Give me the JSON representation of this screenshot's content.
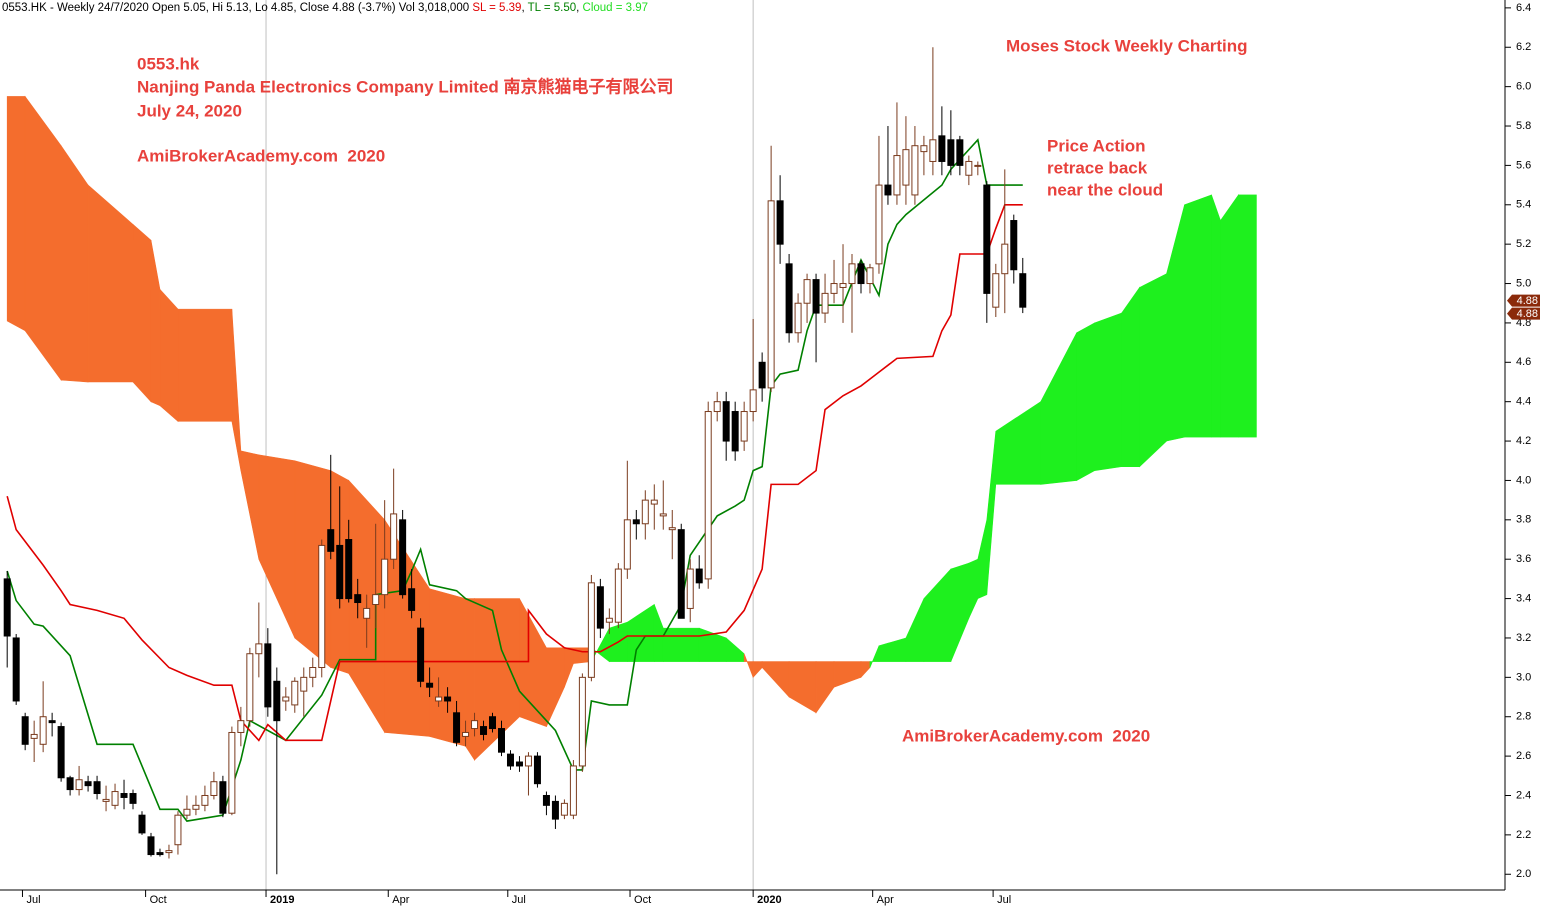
{
  "chart_data": {
    "type": "candlestick",
    "header": [
      {
        "text": "0553.HK - Weekly 24/7/2020 Open 5.05, Hi 5.13, Lo 4.85, Close 4.88 (-3.7%) Vol 3,018,000 ",
        "color": "#000000"
      },
      {
        "text": "SL = 5.39",
        "color": "#e00000"
      },
      {
        "text": ", ",
        "color": "#000000"
      },
      {
        "text": "TL = 5.50",
        "color": "#008000"
      },
      {
        "text": ", ",
        "color": "#000000"
      },
      {
        "text": "Cloud = 3.97",
        "color": "#22dd22"
      }
    ],
    "texts": {
      "ticker": "0553.hk",
      "company": "Nanjing Panda Electronics Company Limited 南京熊猫电子有限公司",
      "date": "July 24, 2020",
      "site": "AmiBrokerAcademy.com  2020",
      "heading": "Moses Stock Weekly Charting",
      "annotation": [
        "Price Action",
        "retrace back",
        "near the cloud"
      ],
      "watermark": "AmiBrokerAcademy.com  2020"
    },
    "text_color": "#e8413c",
    "x": [
      0,
      1,
      2,
      3,
      4,
      5,
      6,
      7,
      8,
      9,
      10,
      11,
      12,
      13,
      14,
      15,
      16,
      17,
      18,
      19,
      20,
      21,
      22,
      23,
      24,
      25,
      26,
      27,
      28,
      29,
      30,
      31,
      32,
      33,
      34,
      35,
      36,
      37,
      38,
      39,
      40,
      41,
      42,
      43,
      44,
      45,
      46,
      47,
      48,
      49,
      50,
      51,
      52,
      53,
      54,
      55,
      56,
      57,
      58,
      59,
      60,
      61,
      62,
      63,
      64,
      65,
      66,
      67,
      68,
      69,
      70,
      71,
      72,
      73,
      74,
      75,
      76,
      77,
      78,
      79,
      80,
      81,
      82,
      83,
      84,
      85,
      86,
      87,
      88,
      89,
      90,
      91,
      92,
      93,
      94,
      95,
      96,
      97,
      98,
      99,
      100,
      101,
      102,
      103,
      104,
      105,
      106,
      107,
      108,
      109,
      110,
      111,
      112,
      113
    ],
    "ohlc": [
      [
        3.5,
        3.54,
        3.05,
        3.21
      ],
      [
        3.2,
        3.22,
        2.86,
        2.88
      ],
      [
        2.8,
        2.82,
        2.63,
        2.66
      ],
      [
        2.69,
        2.78,
        2.57,
        2.71
      ],
      [
        2.66,
        2.98,
        2.62,
        2.8
      ],
      [
        2.78,
        2.82,
        2.7,
        2.77
      ],
      [
        2.75,
        2.77,
        2.47,
        2.49
      ],
      [
        2.49,
        2.5,
        2.4,
        2.43
      ],
      [
        2.43,
        2.55,
        2.4,
        2.48
      ],
      [
        2.47,
        2.5,
        2.42,
        2.45
      ],
      [
        2.47,
        2.5,
        2.38,
        2.41
      ],
      [
        2.37,
        2.45,
        2.32,
        2.38
      ],
      [
        2.35,
        2.46,
        2.33,
        2.42
      ],
      [
        2.41,
        2.48,
        2.33,
        2.39
      ],
      [
        2.41,
        2.43,
        2.33,
        2.36
      ],
      [
        2.3,
        2.32,
        2.2,
        2.21
      ],
      [
        2.19,
        2.21,
        2.09,
        2.1
      ],
      [
        2.11,
        2.13,
        2.09,
        2.1
      ],
      [
        2.11,
        2.15,
        2.08,
        2.12
      ],
      [
        2.15,
        2.32,
        2.1,
        2.3
      ],
      [
        2.3,
        2.4,
        2.28,
        2.33
      ],
      [
        2.33,
        2.4,
        2.3,
        2.35
      ],
      [
        2.35,
        2.45,
        2.32,
        2.4
      ],
      [
        2.4,
        2.52,
        2.38,
        2.47
      ],
      [
        2.47,
        2.5,
        2.29,
        2.31
      ],
      [
        2.31,
        2.75,
        2.3,
        2.72
      ],
      [
        2.72,
        2.85,
        2.65,
        2.78
      ],
      [
        2.78,
        3.15,
        2.75,
        3.12
      ],
      [
        3.12,
        3.38,
        3.0,
        3.17
      ],
      [
        3.17,
        3.25,
        2.8,
        2.85
      ],
      [
        2.98,
        3.05,
        2.0,
        2.78
      ],
      [
        2.88,
        2.95,
        2.83,
        2.9
      ],
      [
        2.86,
        3.0,
        2.82,
        2.98
      ],
      [
        2.93,
        3.05,
        2.8,
        3.0
      ],
      [
        3.0,
        3.1,
        2.95,
        3.05
      ],
      [
        3.05,
        3.7,
        3.0,
        3.67
      ],
      [
        3.75,
        4.13,
        3.6,
        3.64
      ],
      [
        3.67,
        3.97,
        3.35,
        3.4
      ],
      [
        3.7,
        3.8,
        3.38,
        3.4
      ],
      [
        3.42,
        3.5,
        3.3,
        3.38
      ],
      [
        3.3,
        3.42,
        3.15,
        3.35
      ],
      [
        3.37,
        3.78,
        3.25,
        3.42
      ],
      [
        3.42,
        3.9,
        3.35,
        3.6
      ],
      [
        3.6,
        4.06,
        3.55,
        3.83
      ],
      [
        3.8,
        3.85,
        3.4,
        3.42
      ],
      [
        3.45,
        3.55,
        3.3,
        3.34
      ],
      [
        3.25,
        3.3,
        2.95,
        2.98
      ],
      [
        2.97,
        3.05,
        2.9,
        2.95
      ],
      [
        2.88,
        3.0,
        2.85,
        2.9
      ],
      [
        2.9,
        2.95,
        2.82,
        2.88
      ],
      [
        2.82,
        2.88,
        2.65,
        2.67
      ],
      [
        2.7,
        2.78,
        2.65,
        2.72
      ],
      [
        2.74,
        2.82,
        2.7,
        2.78
      ],
      [
        2.75,
        2.78,
        2.68,
        2.71
      ],
      [
        2.8,
        2.82,
        2.72,
        2.74
      ],
      [
        2.74,
        2.78,
        2.6,
        2.62
      ],
      [
        2.61,
        2.63,
        2.53,
        2.55
      ],
      [
        2.57,
        2.6,
        2.52,
        2.55
      ],
      [
        2.55,
        2.62,
        2.4,
        2.6
      ],
      [
        2.6,
        2.62,
        2.44,
        2.46
      ],
      [
        2.4,
        2.42,
        2.3,
        2.35
      ],
      [
        2.37,
        2.4,
        2.23,
        2.28
      ],
      [
        2.3,
        2.38,
        2.28,
        2.36
      ],
      [
        2.3,
        2.58,
        2.28,
        2.55
      ],
      [
        2.55,
        3.02,
        2.52,
        3.0
      ],
      [
        3.0,
        3.52,
        2.98,
        3.48
      ],
      [
        3.46,
        3.5,
        3.2,
        3.25
      ],
      [
        3.28,
        3.35,
        3.22,
        3.3
      ],
      [
        3.28,
        3.58,
        3.25,
        3.55
      ],
      [
        3.55,
        4.1,
        3.5,
        3.8
      ],
      [
        3.8,
        3.85,
        3.7,
        3.78
      ],
      [
        3.78,
        3.95,
        3.7,
        3.9
      ],
      [
        3.88,
        3.98,
        3.75,
        3.9
      ],
      [
        3.82,
        4.0,
        3.75,
        3.83
      ],
      [
        3.75,
        3.85,
        3.6,
        3.76
      ],
      [
        3.75,
        3.78,
        3.3,
        3.3
      ],
      [
        3.35,
        3.6,
        3.28,
        3.55
      ],
      [
        3.55,
        3.62,
        3.45,
        3.48
      ],
      [
        3.5,
        4.4,
        3.45,
        4.35
      ],
      [
        4.35,
        4.45,
        4.3,
        4.4
      ],
      [
        4.4,
        4.45,
        4.1,
        4.2
      ],
      [
        4.35,
        4.4,
        4.1,
        4.15
      ],
      [
        4.2,
        4.4,
        4.15,
        4.35
      ],
      [
        4.35,
        4.82,
        4.3,
        4.46
      ],
      [
        4.6,
        4.65,
        4.4,
        4.47
      ],
      [
        4.47,
        5.7,
        4.45,
        5.42
      ],
      [
        5.42,
        5.55,
        5.1,
        5.2
      ],
      [
        5.1,
        5.15,
        4.7,
        4.75
      ],
      [
        4.75,
        4.95,
        4.7,
        4.9
      ],
      [
        4.9,
        5.05,
        4.8,
        5.02
      ],
      [
        5.02,
        5.05,
        4.6,
        4.85
      ],
      [
        4.85,
        5.05,
        4.8,
        4.95
      ],
      [
        4.95,
        5.12,
        4.9,
        5.0
      ],
      [
        4.98,
        5.2,
        4.8,
        5.0
      ],
      [
        5.0,
        5.15,
        4.75,
        5.1
      ],
      [
        5.1,
        5.12,
        4.95,
        5.0
      ],
      [
        5.0,
        5.1,
        4.95,
        5.08
      ],
      [
        5.1,
        5.75,
        5.05,
        5.5
      ],
      [
        5.5,
        5.8,
        5.4,
        5.45
      ],
      [
        5.45,
        5.92,
        5.4,
        5.65
      ],
      [
        5.5,
        5.85,
        5.4,
        5.68
      ],
      [
        5.45,
        5.8,
        5.4,
        5.7
      ],
      [
        5.67,
        5.75,
        5.55,
        5.7
      ],
      [
        5.62,
        6.2,
        5.55,
        5.73
      ],
      [
        5.75,
        5.9,
        5.55,
        5.62
      ],
      [
        5.73,
        5.88,
        5.55,
        5.6
      ],
      [
        5.73,
        5.75,
        5.55,
        5.6
      ],
      [
        5.55,
        5.65,
        5.5,
        5.62
      ],
      [
        5.6,
        5.62,
        5.55,
        5.6
      ],
      [
        5.5,
        5.52,
        4.8,
        4.95
      ],
      [
        4.88,
        5.1,
        4.83,
        5.05
      ],
      [
        5.05,
        5.58,
        4.85,
        5.2
      ],
      [
        5.32,
        5.35,
        5.0,
        5.07
      ],
      [
        5.05,
        5.13,
        4.85,
        4.88
      ]
    ],
    "up_color": "#7a3b1e",
    "down_color": "#000000",
    "lines": [
      {
        "color": "#008000",
        "x": [
          0,
          1,
          3,
          4,
          7,
          10,
          14,
          17,
          19,
          20,
          24,
          26,
          27,
          31,
          35,
          37,
          41,
          41,
          44,
          45,
          46,
          47,
          50,
          51,
          54,
          55,
          57,
          61,
          63,
          64,
          65,
          67,
          69,
          70,
          71,
          73,
          75,
          76,
          79,
          81,
          82,
          83,
          84,
          85,
          86,
          88,
          89,
          90,
          93,
          95,
          97,
          98,
          99,
          100,
          104,
          105,
          108,
          109,
          113
        ],
        "values": [
          3.54,
          3.39,
          3.27,
          3.26,
          3.11,
          2.66,
          2.66,
          2.33,
          2.33,
          2.27,
          2.3,
          2.58,
          2.78,
          2.68,
          2.91,
          3.09,
          3.09,
          3.42,
          3.44,
          3.54,
          3.65,
          3.47,
          3.44,
          3.4,
          3.34,
          3.14,
          2.93,
          2.73,
          2.53,
          2.53,
          2.88,
          2.86,
          2.86,
          3.14,
          3.21,
          3.21,
          3.37,
          3.62,
          3.82,
          3.87,
          3.9,
          4.05,
          4.07,
          4.48,
          4.54,
          4.56,
          4.76,
          4.89,
          4.89,
          5.12,
          4.94,
          5.2,
          5.3,
          5.35,
          5.5,
          5.58,
          5.73,
          5.5,
          5.5
        ]
      },
      {
        "color": "#e00000",
        "x": [
          0,
          1,
          4,
          6,
          7,
          10,
          13,
          15,
          18,
          20,
          23,
          25,
          26,
          28,
          29,
          31,
          35,
          37,
          58,
          58,
          60,
          62,
          64,
          66,
          68,
          69,
          77,
          80,
          82,
          84,
          85,
          88,
          90,
          91,
          93,
          95,
          97,
          99,
          103,
          104,
          105,
          106,
          109,
          110,
          111,
          113
        ],
        "values": [
          3.92,
          3.75,
          3.57,
          3.44,
          3.37,
          3.34,
          3.3,
          3.19,
          3.05,
          3.01,
          2.96,
          2.96,
          2.78,
          2.68,
          2.76,
          2.68,
          2.68,
          3.08,
          3.08,
          3.34,
          3.22,
          3.15,
          3.13,
          3.13,
          3.18,
          3.21,
          3.21,
          3.23,
          3.34,
          3.55,
          3.98,
          3.98,
          4.05,
          4.36,
          4.43,
          4.48,
          4.55,
          4.62,
          4.63,
          4.76,
          4.84,
          5.15,
          5.15,
          5.28,
          5.4,
          5.4
        ]
      }
    ],
    "cloud": {
      "x": [
        0,
        2,
        6,
        9,
        14,
        16,
        17,
        19,
        25,
        26,
        28,
        32,
        36,
        38,
        42,
        47,
        51,
        52,
        57,
        60,
        62,
        63,
        65,
        67,
        69,
        72,
        73,
        77,
        80,
        82,
        83,
        84,
        87,
        90,
        92,
        95,
        96,
        97,
        100,
        102,
        105,
        107,
        108,
        109,
        110,
        115,
        119,
        121,
        124,
        126,
        129,
        131,
        134,
        135,
        137,
        139
      ],
      "span_a": [
        4.81,
        4.76,
        4.51,
        4.5,
        4.5,
        4.4,
        4.38,
        4.3,
        4.3,
        4.05,
        3.6,
        3.2,
        3.05,
        3.02,
        2.72,
        2.7,
        2.65,
        2.58,
        2.8,
        2.75,
        2.95,
        3.07,
        3.08,
        3.25,
        3.28,
        3.37,
        3.25,
        3.25,
        3.2,
        3.12,
        3.0,
        3.05,
        2.9,
        2.82,
        2.95,
        3.0,
        3.05,
        3.16,
        3.2,
        3.4,
        3.55,
        3.58,
        3.6,
        3.8,
        4.25,
        4.4,
        4.75,
        4.8,
        4.85,
        4.98,
        5.05,
        5.4,
        5.45,
        5.32,
        5.45,
        5.45
      ],
      "span_b": [
        5.95,
        5.95,
        5.7,
        5.5,
        5.3,
        5.22,
        4.97,
        4.87,
        4.87,
        4.15,
        4.13,
        4.1,
        4.05,
        4.0,
        3.8,
        3.45,
        3.4,
        3.4,
        3.4,
        3.15,
        3.15,
        3.15,
        3.15,
        3.08,
        3.08,
        3.08,
        3.08,
        3.08,
        3.08,
        3.08,
        3.08,
        3.08,
        3.08,
        3.08,
        3.08,
        3.08,
        3.08,
        3.08,
        3.08,
        3.08,
        3.08,
        3.3,
        3.4,
        3.42,
        3.98,
        3.98,
        4.0,
        4.05,
        4.07,
        4.07,
        4.2,
        4.22,
        4.22,
        4.22,
        4.22,
        4.22
      ],
      "bullish_color": "#1ef01e",
      "bearish_color": "#f46d2d"
    },
    "price_labels": [
      4.88,
      4.88
    ],
    "price_label_color": "#8b2a0a",
    "xlim": [
      -0.8,
      166.1
    ],
    "ylim": [
      1.92,
      6.44
    ],
    "xticks": [
      {
        "value": 1.7,
        "label": "Jul"
      },
      {
        "value": 15.4,
        "label": "Oct"
      },
      {
        "value": 28.8,
        "label": "2019"
      },
      {
        "value": 42.4,
        "label": "Apr"
      },
      {
        "value": 55.7,
        "label": "Jul"
      },
      {
        "value": 69.3,
        "label": "Oct"
      },
      {
        "value": 83,
        "label": "2020"
      },
      {
        "value": 96.3,
        "label": "Apr"
      },
      {
        "value": 109.7,
        "label": "Jul"
      }
    ],
    "yticks": [
      {
        "value": 2.0,
        "label": "2.0"
      },
      {
        "value": 2.2,
        "label": "2.2"
      },
      {
        "value": 2.4,
        "label": "2.4"
      },
      {
        "value": 2.6,
        "label": "2.6"
      },
      {
        "value": 2.8,
        "label": "2.8"
      },
      {
        "value": 3.0,
        "label": "3.0"
      },
      {
        "value": 3.2,
        "label": "3.2"
      },
      {
        "value": 3.4,
        "label": "3.4"
      },
      {
        "value": 3.6,
        "label": "3.6"
      },
      {
        "value": 3.8,
        "label": "3.8"
      },
      {
        "value": 4.0,
        "label": "4.0"
      },
      {
        "value": 4.2,
        "label": "4.2"
      },
      {
        "value": 4.4,
        "label": "4.4"
      },
      {
        "value": 4.6,
        "label": "4.6"
      },
      {
        "value": 4.8,
        "label": "4.8"
      },
      {
        "value": 5.0,
        "label": "5.0"
      },
      {
        "value": 5.2,
        "label": "5.2"
      },
      {
        "value": 5.4,
        "label": "5.4"
      },
      {
        "value": 5.6,
        "label": "5.6"
      },
      {
        "value": 5.8,
        "label": "5.8"
      },
      {
        "value": 6.0,
        "label": "6.0"
      },
      {
        "value": 6.2,
        "label": "6.2"
      },
      {
        "value": 6.4,
        "label": "6.4"
      }
    ]
  }
}
